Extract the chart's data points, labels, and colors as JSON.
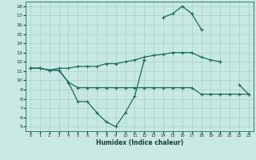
{
  "xlabel": "Humidex (Indice chaleur)",
  "bg_color": "#c8e8e4",
  "grid_color": "#a8d0cc",
  "line_color": "#1a6b5e",
  "xlim": [
    -0.5,
    23.5
  ],
  "ylim": [
    4.5,
    18.5
  ],
  "xticks": [
    0,
    1,
    2,
    3,
    4,
    5,
    6,
    7,
    8,
    9,
    10,
    11,
    12,
    13,
    14,
    15,
    16,
    17,
    18,
    19,
    20,
    21,
    22,
    23
  ],
  "yticks": [
    5,
    6,
    7,
    8,
    9,
    10,
    11,
    12,
    13,
    14,
    15,
    16,
    17,
    18
  ],
  "lines": [
    [
      11.3,
      11.3,
      11.1,
      11.1,
      9.8,
      7.7,
      7.7,
      6.5,
      5.5,
      5.0,
      6.5,
      8.3,
      12.2,
      null,
      null,
      null,
      null,
      null,
      null,
      null,
      null,
      null,
      null,
      null
    ],
    [
      11.3,
      11.3,
      11.1,
      11.1,
      9.8,
      9.2,
      9.2,
      9.2,
      9.2,
      9.2,
      9.2,
      9.2,
      9.2,
      9.2,
      9.2,
      9.2,
      9.2,
      9.2,
      8.5,
      8.5,
      8.5,
      8.5,
      8.5,
      8.5
    ],
    [
      11.3,
      11.3,
      11.1,
      11.3,
      11.3,
      11.5,
      11.5,
      11.5,
      11.8,
      11.8,
      12.0,
      12.2,
      12.5,
      12.7,
      12.8,
      13.0,
      13.0,
      13.0,
      12.5,
      12.2,
      12.0,
      null,
      null,
      null
    ],
    [
      null,
      null,
      null,
      null,
      null,
      null,
      null,
      null,
      null,
      null,
      null,
      null,
      12.2,
      null,
      16.8,
      17.2,
      18.0,
      17.2,
      15.5,
      null,
      12.0,
      null,
      9.5,
      8.5
    ]
  ]
}
